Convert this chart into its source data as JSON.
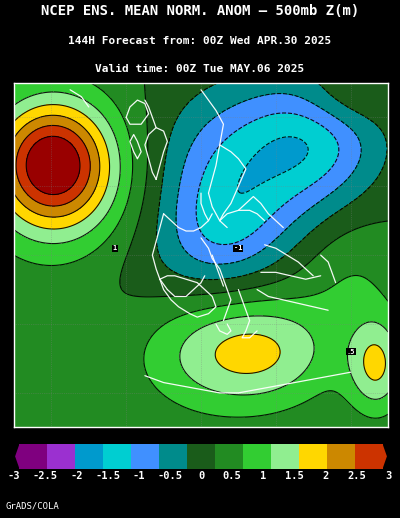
{
  "title_line1": "NCEP ENS. MEAN NORM. ANOM – 500mb Z(m)",
  "title_line2": "144H Forecast from: 00Z Wed APR.30 2025",
  "title_line3": "Valid time: 00Z Tue MAY.06 2025",
  "colorbar_levels": [
    -3,
    -2.5,
    -2,
    -1.5,
    -1,
    -0.5,
    0,
    0.5,
    1,
    1.5,
    2,
    2.5,
    3
  ],
  "background_color": "#000000",
  "text_color": "#ffffff",
  "watermark": "GrADS/COLA",
  "fig_width": 4.0,
  "fig_height": 5.18,
  "cmap_colors": [
    "#7F007F",
    "#9B30D0",
    "#009ACD",
    "#00CED1",
    "#4090FF",
    "#008B8B",
    "#1A5C1A",
    "#228B22",
    "#32CD32",
    "#90EE90",
    "#FFD700",
    "#CC8800",
    "#CC3300",
    "#990000"
  ],
  "contour_levels": [
    -3.0,
    -2.5,
    -2.0,
    -1.5,
    -1.0,
    -0.5,
    0.0,
    0.5,
    1.0,
    1.5,
    2.0,
    2.5,
    3.0
  ],
  "map_border_color": "#ffffff"
}
